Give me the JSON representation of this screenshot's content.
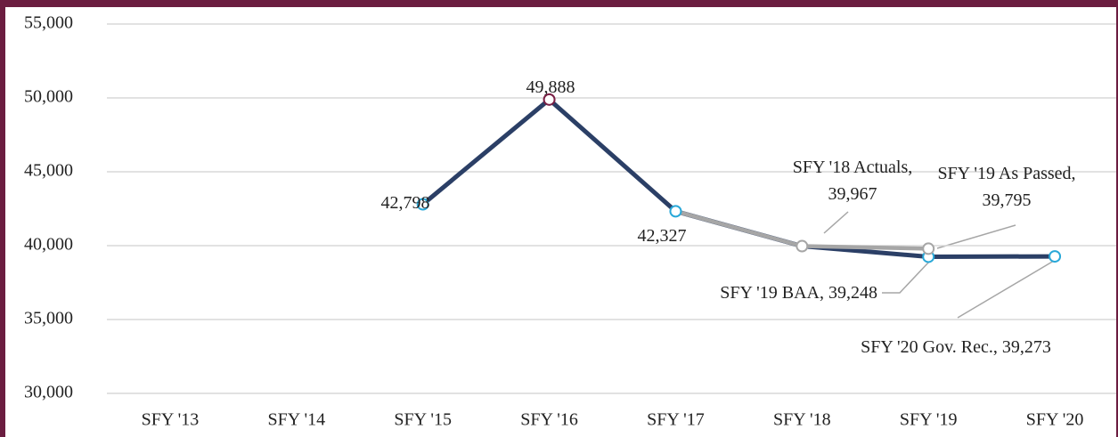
{
  "chart_data": {
    "type": "line",
    "categories": [
      "SFY '13",
      "SFY '14",
      "SFY '15",
      "SFY '16",
      "SFY '17",
      "SFY '18",
      "SFY '19",
      "SFY '20"
    ],
    "series": [
      {
        "color": "#2b3f66",
        "values": [
          null,
          null,
          42798,
          49888,
          42327,
          39967,
          39248,
          39273
        ],
        "marker_colors": [
          null,
          null,
          "#29a8d8",
          "#7a1f45",
          "#29a8d8",
          "#a6a6a6",
          "#29a8d8",
          "#29a8d8"
        ],
        "value_labels": [
          null,
          null,
          "42,798",
          "49,888",
          "42,327",
          "SFY '18 Actuals, 39,967",
          "SFY '19 BAA, 39,248",
          "SFY '20 Gov. Rec., 39,273"
        ]
      },
      {
        "color": "#a6a6a6",
        "values": [
          null,
          null,
          null,
          null,
          42327,
          39967,
          39795,
          null
        ],
        "marker_colors": [
          null,
          null,
          null,
          null,
          null,
          null,
          "#a6a6a6",
          null
        ],
        "value_labels": [
          null,
          null,
          null,
          null,
          null,
          null,
          "SFY '19 As Passed, 39,795",
          null
        ]
      }
    ],
    "ylim": [
      30000,
      55000
    ],
    "yticks": [
      {
        "value": 30000,
        "label": "30,000"
      },
      {
        "value": 35000,
        "label": "35,000"
      },
      {
        "value": 40000,
        "label": "40,000"
      },
      {
        "value": 45000,
        "label": "45,000"
      },
      {
        "value": 50000,
        "label": "50,000"
      },
      {
        "value": 55000,
        "label": "55,000"
      }
    ],
    "grid": true
  }
}
